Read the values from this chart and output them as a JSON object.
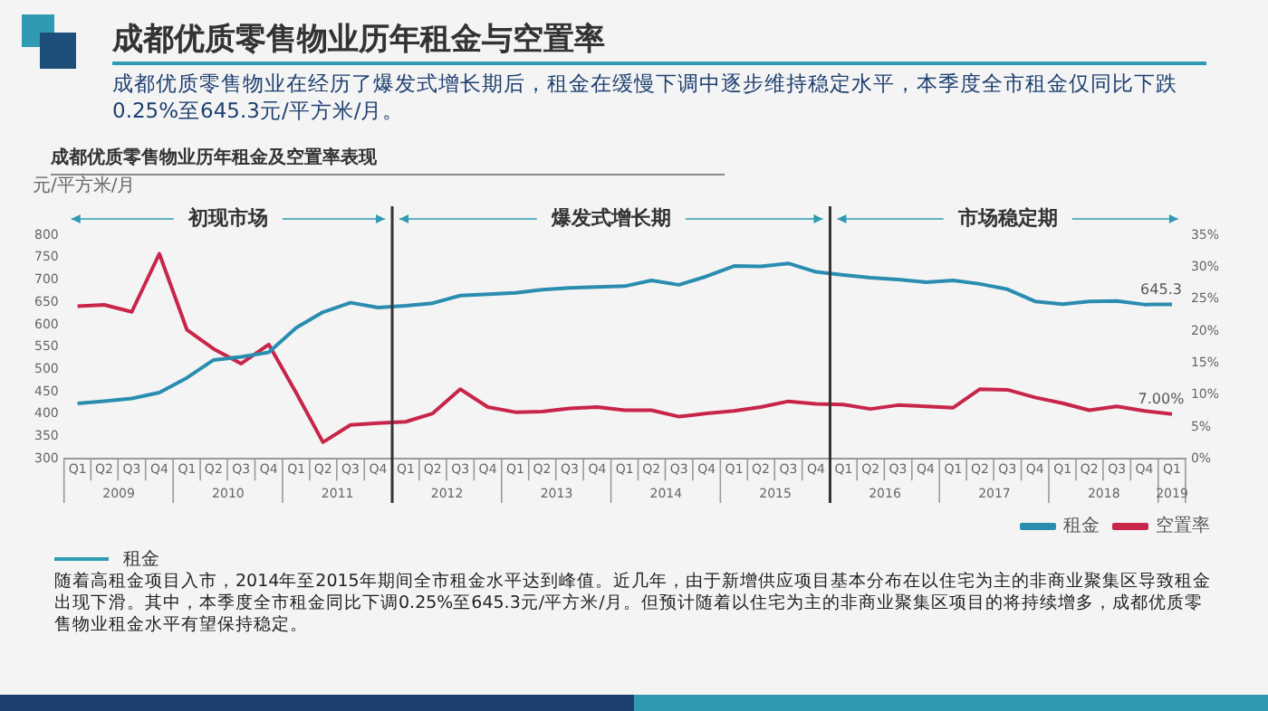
{
  "chart_data": {
    "type": "line",
    "title": "成都优质零售物业历年租金与空置率",
    "subtitle": "成都优质零售物业在经历了爆发式增长期后，租金在缓慢下调中逐步维持稳定水平，本季度全市租金仅同比下跌0.25%至645.3元/平方米/月。",
    "ylabel": "元/平方米/月",
    "annotations": [
      "成都优质零售物业历年租金及空置率表现",
      "租金",
      "随着高租金项目入市，2014年至2015年期间全市租金水平达到峰值。近几年，由于新增供应项目基本分布在以住宅为主的非商业聚集区导致租金出现下滑。其中，本季度全市租金同比下调0.25%至645.3元/平方米/月。但预计随着以住宅为主的非商业聚集区项目的将持续增多，成都优质零售物业租金水平有望保持稳定。",
      "初现市场",
      "爆发式增长期",
      "市场稳定期",
      "2009",
      "2010",
      "2011",
      "2012",
      "2013",
      "2014",
      "2015",
      "2016",
      "2017",
      "2018",
      "2019"
    ],
    "x": [
      "2009-02-15",
      "2009-05-15",
      "2009-08-15",
      "2009-11-15",
      "2010-02-15",
      "2010-05-15",
      "2010-08-15",
      "2010-11-15",
      "2011-02-15",
      "2011-05-15",
      "2011-08-15",
      "2011-11-15",
      "2012-02-15",
      "2012-05-15",
      "2012-08-15",
      "2012-11-15",
      "2013-02-15",
      "2013-05-15",
      "2013-08-15",
      "2013-11-15",
      "2014-02-15",
      "2014-05-15",
      "2014-08-15",
      "2014-11-15",
      "2015-02-15",
      "2015-05-15",
      "2015-08-15",
      "2015-11-15",
      "2016-02-15",
      "2016-05-15",
      "2016-08-15",
      "2016-11-15",
      "2017-02-15",
      "2017-05-15",
      "2017-08-15",
      "2017-11-15",
      "2018-02-15",
      "2018-05-15",
      "2018-08-15",
      "2018-11-15",
      "2019-02-15"
    ],
    "series": [
      {
        "name": "租金",
        "color": "#2a8db0",
        "values": [
          424,
          429,
          435,
          448,
          481,
          521,
          528,
          538,
          593,
          628,
          649,
          638,
          642,
          648,
          665,
          668,
          671,
          678,
          682,
          684,
          686,
          699,
          689,
          708,
          731,
          730,
          737,
          718,
          711,
          705,
          701,
          695,
          699,
          691,
          679,
          652,
          646,
          652,
          653,
          645,
          645.3
        ],
        "value_labels": [
          null,
          null,
          null,
          null,
          null,
          null,
          null,
          null,
          null,
          null,
          null,
          null,
          null,
          null,
          null,
          null,
          null,
          null,
          null,
          null,
          null,
          null,
          null,
          null,
          null,
          null,
          null,
          null,
          null,
          null,
          null,
          null,
          null,
          null,
          null,
          null,
          null,
          null,
          null,
          null,
          "645.3"
        ]
      },
      {
        "name": "空置率",
        "color": "#c8254a",
        "axis": "y2",
        "values": [
          23.9,
          24.1,
          23.0,
          32.1,
          20.2,
          17.2,
          14.9,
          17.9,
          10.3,
          2.6,
          5.3,
          5.6,
          5.8,
          7.1,
          10.9,
          8.1,
          7.3,
          7.4,
          7.9,
          8.1,
          7.6,
          7.6,
          6.6,
          7.1,
          7.5,
          8.1,
          9.0,
          8.6,
          8.5,
          7.8,
          8.4,
          8.2,
          8.0,
          10.9,
          10.8,
          9.6,
          8.7,
          7.6,
          8.2,
          7.5,
          7.0
        ],
        "value_labels": [
          null,
          null,
          null,
          null,
          null,
          null,
          null,
          null,
          null,
          null,
          null,
          null,
          null,
          null,
          null,
          null,
          null,
          null,
          null,
          null,
          null,
          null,
          null,
          null,
          null,
          null,
          null,
          null,
          null,
          null,
          null,
          null,
          null,
          null,
          null,
          null,
          null,
          null,
          null,
          null,
          "7.00%"
        ]
      }
    ],
    "xlim": [
      "2009-01-01",
      "2019-04-01"
    ],
    "xticks": [
      {
        "value": "2009-02-15",
        "label": "Q1"
      },
      {
        "value": "2009-05-15",
        "label": "Q2"
      },
      {
        "value": "2009-08-15",
        "label": "Q3"
      },
      {
        "value": "2009-11-15",
        "label": "Q4"
      },
      {
        "value": "2010-02-15",
        "label": "Q1"
      },
      {
        "value": "2010-05-15",
        "label": "Q2"
      },
      {
        "value": "2010-08-15",
        "label": "Q3"
      },
      {
        "value": "2010-11-15",
        "label": "Q4"
      },
      {
        "value": "2011-02-15",
        "label": "Q1"
      },
      {
        "value": "2011-05-15",
        "label": "Q2"
      },
      {
        "value": "2011-08-15",
        "label": "Q3"
      },
      {
        "value": "2011-11-15",
        "label": "Q4"
      },
      {
        "value": "2012-02-15",
        "label": "Q1"
      },
      {
        "value": "2012-05-15",
        "label": "Q2"
      },
      {
        "value": "2012-08-15",
        "label": "Q3"
      },
      {
        "value": "2012-11-15",
        "label": "Q4"
      },
      {
        "value": "2013-02-15",
        "label": "Q1"
      },
      {
        "value": "2013-05-15",
        "label": "Q2"
      },
      {
        "value": "2013-08-15",
        "label": "Q3"
      },
      {
        "value": "2013-11-15",
        "label": "Q4"
      },
      {
        "value": "2014-02-15",
        "label": "Q1"
      },
      {
        "value": "2014-05-15",
        "label": "Q2"
      },
      {
        "value": "2014-08-15",
        "label": "Q3"
      },
      {
        "value": "2014-11-15",
        "label": "Q4"
      },
      {
        "value": "2015-02-15",
        "label": "Q1"
      },
      {
        "value": "2015-05-15",
        "label": "Q2"
      },
      {
        "value": "2015-08-15",
        "label": "Q3"
      },
      {
        "value": "2015-11-15",
        "label": "Q4"
      },
      {
        "value": "2016-02-15",
        "label": "Q1"
      },
      {
        "value": "2016-05-15",
        "label": "Q2"
      },
      {
        "value": "2016-08-15",
        "label": "Q3"
      },
      {
        "value": "2016-11-15",
        "label": "Q4"
      },
      {
        "value": "2017-02-15",
        "label": "Q1"
      },
      {
        "value": "2017-05-15",
        "label": "Q2"
      },
      {
        "value": "2017-08-15",
        "label": "Q3"
      },
      {
        "value": "2017-11-15",
        "label": "Q4"
      },
      {
        "value": "2018-02-15",
        "label": "Q1"
      },
      {
        "value": "2018-05-15",
        "label": "Q2"
      },
      {
        "value": "2018-08-15",
        "label": "Q3"
      },
      {
        "value": "2018-11-15",
        "label": "Q4"
      },
      {
        "value": "2019-02-15",
        "label": "Q1"
      }
    ],
    "ylim": [
      300,
      800
    ],
    "yticks": [
      300,
      350,
      400,
      450,
      500,
      550,
      600,
      650,
      700,
      750,
      800
    ],
    "y2lim": [
      0,
      35
    ],
    "y2ticks": [
      {
        "value": 0,
        "label": "0%"
      },
      {
        "value": 5,
        "label": "5%"
      },
      {
        "value": 10,
        "label": "10%"
      },
      {
        "value": 15,
        "label": "15%"
      },
      {
        "value": 20,
        "label": "20%"
      },
      {
        "value": 25,
        "label": "25%"
      },
      {
        "value": 30,
        "label": "30%"
      },
      {
        "value": 35,
        "label": "35%"
      }
    ],
    "ref_lines": [
      {
        "axis": "x",
        "value": "2012-01-01",
        "color": "#333333"
      },
      {
        "axis": "x",
        "value": "2016-01-01",
        "color": "#333333"
      }
    ],
    "legend": "bottom right",
    "marker": "none",
    "line_style": "solid",
    "grid": false
  }
}
